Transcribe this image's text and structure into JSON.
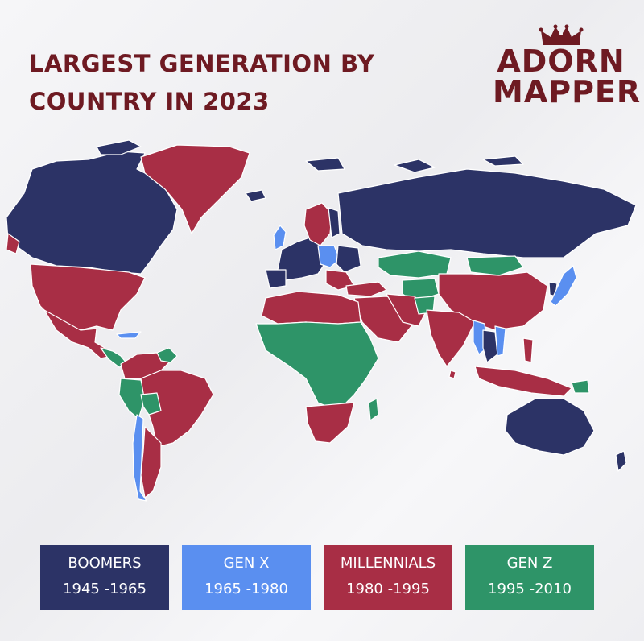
{
  "title": {
    "line1": "LARGEST GENERATION BY",
    "line2": "COUNTRY IN 2023"
  },
  "brand": {
    "line1": "ADORN",
    "line2": "MAPPER",
    "icon": "crown-icon"
  },
  "colors": {
    "boomers": "#2c3366",
    "genx": "#5a8ff0",
    "millennials": "#a82e45",
    "genz": "#2e9468",
    "ocean": "#ffffff"
  },
  "legend": [
    {
      "name": "BOOMERS",
      "range": "1945 -1965",
      "color": "#2c3366"
    },
    {
      "name": "GEN X",
      "range": "1965 -1980",
      "color": "#5a8ff0"
    },
    {
      "name": "MILLENNIALS",
      "range": "1980 -1995",
      "color": "#a82e45"
    },
    {
      "name": "GEN Z",
      "range": "1995 -2010",
      "color": "#2e9468"
    }
  ]
}
